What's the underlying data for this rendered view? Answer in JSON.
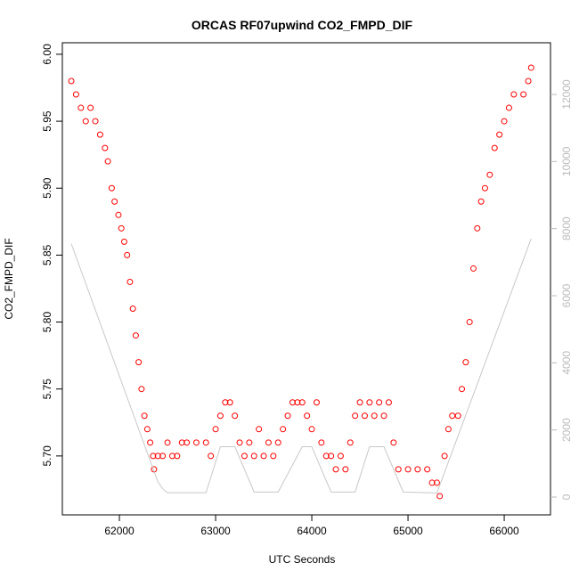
{
  "chart_data": {
    "type": "scatter",
    "title": "ORCAS RF07upwind CO2_FMPD_DIF",
    "xlabel": "UTC Seconds",
    "ylabel": "CO2_FMPD_DIF",
    "xlim": [
      61407,
      66481
    ],
    "ylim": [
      5.656,
      6.0086
    ],
    "y2lim": [
      -531,
      13540
    ],
    "xticks": [
      62000,
      63000,
      64000,
      65000,
      66000
    ],
    "yticks": [
      {
        "value": 5.7,
        "label": "5.70"
      },
      {
        "value": 5.75,
        "label": "5.75"
      },
      {
        "value": 5.8,
        "label": "5.80"
      },
      {
        "value": 5.85,
        "label": "5.85"
      },
      {
        "value": 5.9,
        "label": "5.90"
      },
      {
        "value": 5.95,
        "label": "5.95"
      },
      {
        "value": 6.0,
        "label": "6.00"
      }
    ],
    "y2ticks": [
      0,
      2000,
      4000,
      6000,
      8000,
      10000,
      12000
    ],
    "series": [
      {
        "color": "#ff0000",
        "x": [
          61500,
          61550,
          61600,
          61650,
          61700,
          61750,
          61800,
          61850,
          61880,
          61920,
          61950,
          61990,
          62020,
          62050,
          62080,
          62110,
          62140,
          62170,
          62200,
          62230,
          62260,
          62290,
          62320,
          62350,
          62360,
          62400,
          62450,
          62500,
          62550,
          62600,
          62650,
          62700,
          62800,
          62900,
          62950,
          63000,
          63050,
          63100,
          63150,
          63200,
          63250,
          63300,
          63350,
          63400,
          63450,
          63500,
          63550,
          63600,
          63650,
          63700,
          63750,
          63800,
          63850,
          63900,
          63950,
          64000,
          64050,
          64100,
          64150,
          64200,
          64250,
          64300,
          64350,
          64400,
          64450,
          64500,
          64550,
          64600,
          64650,
          64700,
          64750,
          64800,
          64850,
          64900,
          65000,
          65100,
          65200,
          65250,
          65300,
          65330,
          65380,
          65420,
          65460,
          65520,
          65560,
          65600,
          65640,
          65680,
          65720,
          65760,
          65800,
          65850,
          65900,
          65950,
          66000,
          66050,
          66100,
          66200,
          66250,
          66280
        ],
        "values": [
          5.98,
          5.97,
          5.96,
          5.95,
          5.96,
          5.95,
          5.94,
          5.93,
          5.92,
          5.9,
          5.89,
          5.88,
          5.87,
          5.86,
          5.85,
          5.83,
          5.81,
          5.79,
          5.77,
          5.75,
          5.73,
          5.72,
          5.71,
          5.7,
          5.69,
          5.7,
          5.7,
          5.71,
          5.7,
          5.7,
          5.71,
          5.71,
          5.71,
          5.71,
          5.7,
          5.72,
          5.73,
          5.74,
          5.74,
          5.73,
          5.71,
          5.7,
          5.71,
          5.7,
          5.72,
          5.7,
          5.71,
          5.7,
          5.71,
          5.72,
          5.73,
          5.74,
          5.74,
          5.74,
          5.73,
          5.72,
          5.74,
          5.71,
          5.7,
          5.7,
          5.69,
          5.7,
          5.69,
          5.71,
          5.73,
          5.74,
          5.73,
          5.74,
          5.73,
          5.74,
          5.73,
          5.74,
          5.71,
          5.69,
          5.69,
          5.69,
          5.69,
          5.68,
          5.68,
          5.67,
          5.7,
          5.72,
          5.73,
          5.73,
          5.75,
          5.77,
          5.8,
          5.84,
          5.87,
          5.89,
          5.9,
          5.91,
          5.93,
          5.94,
          5.95,
          5.96,
          5.97,
          5.97,
          5.98,
          5.99
        ]
      },
      {
        "type": "line",
        "axis": "y2",
        "color": "#c8c8c8",
        "x": [
          61500,
          62400,
          62450,
          62500,
          62900,
          63050,
          63200,
          63400,
          63650,
          63900,
          64000,
          64200,
          64450,
          64600,
          64750,
          64950,
          65300,
          66280
        ],
        "values": [
          7550,
          450,
          250,
          130,
          130,
          1500,
          1500,
          150,
          150,
          1500,
          1500,
          150,
          150,
          1500,
          1500,
          150,
          120,
          7700
        ]
      }
    ]
  }
}
